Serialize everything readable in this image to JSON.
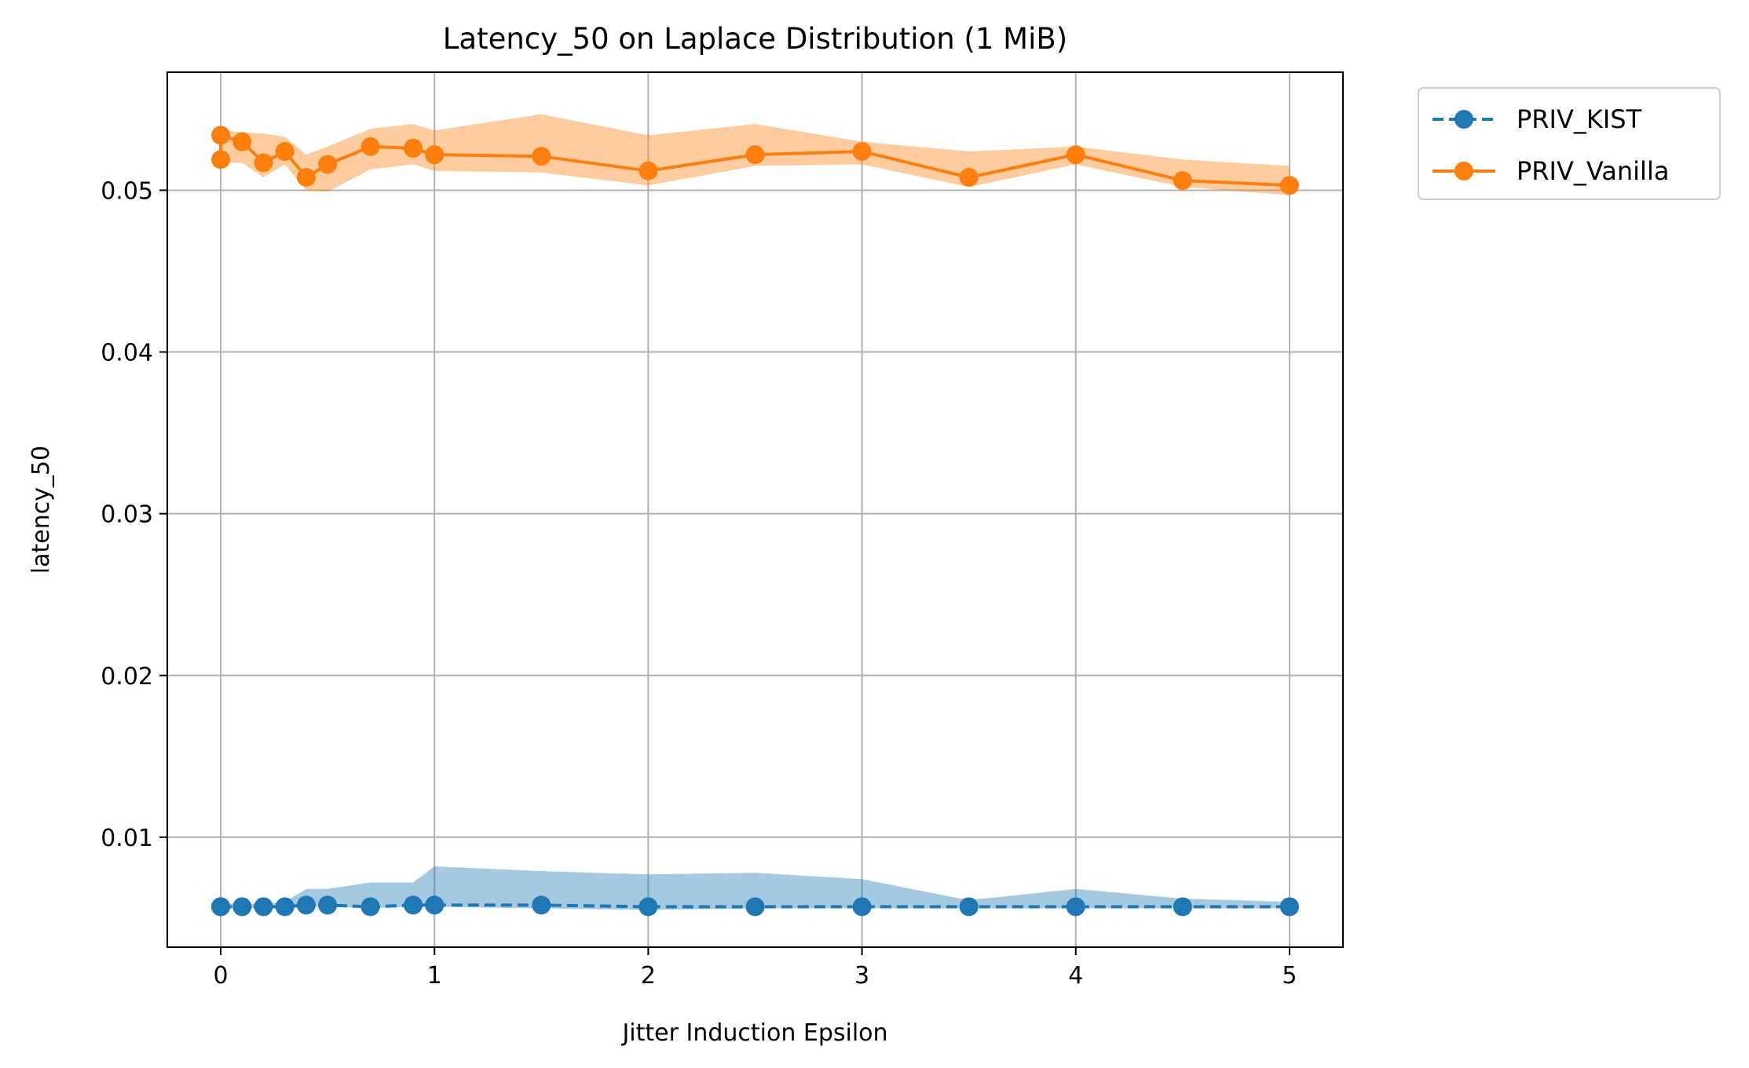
{
  "chart_data": {
    "type": "line",
    "title": "Latency_50 on Laplace Distribution (1 MiB)",
    "xlabel": "Jitter Induction Epsilon",
    "ylabel": "latency_50",
    "xlim": [
      -0.25,
      5.25
    ],
    "ylim": [
      0.0032,
      0.0573
    ],
    "xticks": [
      0,
      1,
      2,
      3,
      4,
      5
    ],
    "xtick_labels": [
      "0",
      "1",
      "2",
      "3",
      "4",
      "5"
    ],
    "yticks": [
      0.01,
      0.02,
      0.03,
      0.04,
      0.05
    ],
    "ytick_labels": [
      "0.01",
      "0.02",
      "0.03",
      "0.04",
      "0.05"
    ],
    "grid": true,
    "legend_position": "outside-top-right",
    "series": [
      {
        "name": "PRIV_KIST",
        "color": "#1f77b4",
        "line_style": "dashed",
        "marker": "circle",
        "x": [
          0,
          0,
          0.1,
          0.2,
          0.3,
          0.4,
          0.5,
          0.7,
          0.9,
          1.0,
          1.5,
          2.0,
          2.5,
          3.0,
          3.5,
          4.0,
          4.5,
          5.0
        ],
        "y": [
          0.0057,
          0.0057,
          0.0057,
          0.0057,
          0.0057,
          0.0058,
          0.0058,
          0.0057,
          0.0058,
          0.0058,
          0.0058,
          0.0057,
          0.0057,
          0.0057,
          0.0057,
          0.0057,
          0.0057,
          0.0057
        ],
        "band_upper": [
          0.0059,
          0.0059,
          0.0059,
          0.0059,
          0.006,
          0.0068,
          0.0068,
          0.0072,
          0.0072,
          0.0082,
          0.0079,
          0.0077,
          0.0078,
          0.0074,
          0.0061,
          0.0068,
          0.0062,
          0.006
        ],
        "band_lower": [
          0.0056,
          0.0056,
          0.0056,
          0.0056,
          0.0056,
          0.0057,
          0.0057,
          0.0056,
          0.0057,
          0.0057,
          0.0056,
          0.0055,
          0.0056,
          0.0056,
          0.0056,
          0.0056,
          0.0056,
          0.0056
        ]
      },
      {
        "name": "PRIV_Vanilla",
        "color": "#ff7f0e",
        "line_style": "solid",
        "marker": "circle",
        "x": [
          0,
          0,
          0.1,
          0.2,
          0.3,
          0.4,
          0.5,
          0.7,
          0.9,
          1.0,
          1.5,
          2.0,
          2.5,
          3.0,
          3.5,
          4.0,
          4.5,
          5.0
        ],
        "y": [
          0.0519,
          0.0534,
          0.053,
          0.0517,
          0.0524,
          0.0508,
          0.0516,
          0.0527,
          0.0526,
          0.0522,
          0.0521,
          0.0512,
          0.0522,
          0.0524,
          0.0508,
          0.0522,
          0.0506,
          0.0503
        ],
        "band_upper": [
          0.0535,
          0.0537,
          0.0536,
          0.0535,
          0.0533,
          0.0522,
          0.0527,
          0.0538,
          0.0541,
          0.0537,
          0.0547,
          0.0534,
          0.0541,
          0.053,
          0.0524,
          0.0527,
          0.0519,
          0.0515
        ],
        "band_lower": [
          0.0517,
          0.0517,
          0.0517,
          0.0508,
          0.0516,
          0.05,
          0.0499,
          0.0513,
          0.0516,
          0.0512,
          0.0511,
          0.0503,
          0.0515,
          0.0516,
          0.0502,
          0.0516,
          0.0502,
          0.0497
        ]
      }
    ]
  }
}
